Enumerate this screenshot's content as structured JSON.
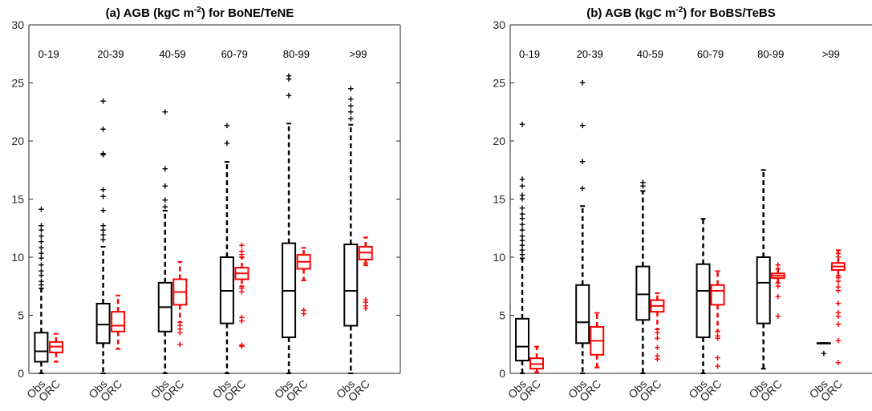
{
  "figure": {
    "panels": [
      {
        "title_main": "(a) AGB (kgC m",
        "title_sup": "-2",
        "title_rest": ") for BoNE/TeNE"
      },
      {
        "title_main": "(b) AGB (kgC m",
        "title_sup": "-2",
        "title_rest": ") for BoBS/TeBS"
      }
    ]
  },
  "chart_data": [
    {
      "type": "box",
      "title": "(a) AGB (kgC m-2) for BoNE/TeNE",
      "ylim": [
        0,
        30
      ],
      "yticks": [
        0,
        5,
        10,
        15,
        20,
        25,
        30
      ],
      "group_labels": [
        "0-19",
        "20-39",
        "40-59",
        "60-79",
        "80-99",
        ">99"
      ],
      "categories": [
        "Obs",
        "ORC"
      ],
      "colors": {
        "Obs": "#000000",
        "ORC": "#ff0000"
      },
      "groups": [
        {
          "label": "0-19",
          "Obs": {
            "whisker_low": 0,
            "q1": 1.0,
            "median": 1.9,
            "q3": 3.5,
            "whisker_high": 7.3,
            "outliers": [
              7.6,
              7.9,
              8.4,
              8.8,
              9.3,
              9.9,
              10.3,
              10.8,
              11.3,
              11.8,
              12.3,
              12.7,
              14.1
            ]
          },
          "ORC": {
            "whisker_low": 1.0,
            "q1": 1.8,
            "median": 2.3,
            "q3": 2.7,
            "whisker_high": 3.4,
            "outliers": []
          }
        },
        {
          "label": "20-39",
          "Obs": {
            "whisker_low": 0,
            "q1": 2.6,
            "median": 4.2,
            "q3": 6.0,
            "whisker_high": 10.9,
            "outliers": [
              11.5,
              11.9,
              12.3,
              12.7,
              14.0,
              15.2,
              15.8,
              18.8,
              18.9,
              21.0,
              23.4
            ]
          },
          "ORC": {
            "whisker_low": 2.1,
            "q1": 3.6,
            "median": 4.1,
            "q3": 5.3,
            "whisker_high": 6.7,
            "outliers": []
          }
        },
        {
          "label": "40-59",
          "Obs": {
            "whisker_low": 0,
            "q1": 3.6,
            "median": 5.7,
            "q3": 7.8,
            "whisker_high": 14.0,
            "outliers": [
              14.3,
              14.9,
              16.1,
              17.6,
              22.5
            ]
          },
          "ORC": {
            "whisker_low": 4.4,
            "q1": 5.9,
            "median": 7.0,
            "q3": 8.1,
            "whisker_high": 9.6,
            "outliers": [
              2.5,
              3.5,
              3.8,
              4.1
            ]
          },
          "note": ""
        },
        {
          "label": "60-79",
          "Obs": {
            "whisker_low": 0,
            "q1": 4.3,
            "median": 7.1,
            "q3": 10.0,
            "whisker_high": 18.2,
            "outliers": [
              19.8,
              21.3
            ]
          },
          "ORC": {
            "whisker_low": 7.5,
            "q1": 8.1,
            "median": 8.6,
            "q3": 9.1,
            "whisker_high": 10.0,
            "outliers": [
              2.3,
              2.4,
              4.5,
              4.8,
              7.0,
              7.3,
              10.2,
              10.5,
              11.0
            ]
          }
        },
        {
          "label": "80-99",
          "Obs": {
            "whisker_low": 0,
            "q1": 3.1,
            "median": 7.1,
            "q3": 11.2,
            "whisker_high": 21.5,
            "outliers": [
              23.9,
              25.3,
              25.6
            ]
          },
          "ORC": {
            "whisker_low": 8.0,
            "q1": 9.0,
            "median": 9.6,
            "q3": 10.2,
            "whisker_high": 10.8,
            "outliers": [
              5.1,
              5.4
            ]
          }
        },
        {
          "label": ">99",
          "Obs": {
            "whisker_low": 0,
            "q1": 4.1,
            "median": 7.1,
            "q3": 11.1,
            "whisker_high": 21.4,
            "outliers": [
              21.9,
              22.5,
              23.0,
              23.6,
              24.5
            ]
          },
          "ORC": {
            "whisker_low": 9.3,
            "q1": 9.8,
            "median": 10.4,
            "q3": 10.9,
            "whisker_high": 11.7,
            "outliers": [
              5.6,
              5.8,
              6.1,
              6.3,
              9.5
            ]
          }
        }
      ]
    },
    {
      "type": "box",
      "title": "(b) AGB (kgC m-2) for BoBS/TeBS",
      "ylim": [
        0,
        30
      ],
      "yticks": [
        0,
        5,
        10,
        15,
        20,
        25,
        30
      ],
      "group_labels": [
        "0-19",
        "20-39",
        "40-59",
        "60-79",
        "80-99",
        ">99"
      ],
      "categories": [
        "Obs",
        "ORC"
      ],
      "colors": {
        "Obs": "#000000",
        "ORC": "#ff0000"
      },
      "groups": [
        {
          "label": "0-19",
          "Obs": {
            "whisker_low": 0,
            "q1": 1.1,
            "median": 2.3,
            "q3": 4.7,
            "whisker_high": 9.9,
            "outliers": [
              10.2,
              10.6,
              11.0,
              11.4,
              11.8,
              12.3,
              12.8,
              13.3,
              13.7,
              14.2,
              15.0,
              15.3,
              16.1,
              16.7,
              21.4
            ]
          },
          "ORC": {
            "whisker_low": 0.1,
            "q1": 0.4,
            "median": 0.8,
            "q3": 1.3,
            "whisker_high": 2.3,
            "outliers": []
          }
        },
        {
          "label": "20-39",
          "Obs": {
            "whisker_low": 0,
            "q1": 2.6,
            "median": 4.4,
            "q3": 7.6,
            "whisker_high": 14.4,
            "outliers": [
              15.9,
              18.2,
              21.3,
              25.0
            ]
          },
          "ORC": {
            "whisker_low": 0.5,
            "q1": 1.6,
            "median": 2.8,
            "q3": 4.0,
            "whisker_high": 5.2,
            "outliers": []
          }
        },
        {
          "label": "40-59",
          "Obs": {
            "whisker_low": 0,
            "q1": 4.6,
            "median": 6.8,
            "q3": 9.2,
            "whisker_high": 15.7,
            "outliers": [
              16.1,
              16.4
            ]
          },
          "ORC": {
            "whisker_low": 3.8,
            "q1": 5.3,
            "median": 5.8,
            "q3": 6.3,
            "whisker_high": 6.9,
            "outliers": [
              1.2,
              1.5,
              2.2,
              3.0,
              3.5
            ]
          }
        },
        {
          "label": "60-79",
          "Obs": {
            "whisker_low": 0,
            "q1": 3.1,
            "median": 7.1,
            "q3": 9.4,
            "whisker_high": 13.3,
            "outliers": []
          },
          "ORC": {
            "whisker_low": 3.6,
            "q1": 5.9,
            "median": 7.1,
            "q3": 7.6,
            "whisker_high": 8.8,
            "outliers": [
              0.6,
              1.3,
              3.0,
              3.2
            ]
          }
        },
        {
          "label": "80-99",
          "Obs": {
            "whisker_low": 0.4,
            "q1": 4.3,
            "median": 7.8,
            "q3": 10.0,
            "whisker_high": 17.5,
            "outliers": []
          },
          "ORC": {
            "whisker_low": 7.8,
            "q1": 8.2,
            "median": 8.4,
            "q3": 8.6,
            "whisker_high": 9.0,
            "outliers": [
              4.9,
              6.6,
              7.5,
              9.3
            ]
          }
        },
        {
          "label": ">99",
          "Obs": {
            "whisker_low": 2.6,
            "q1": 2.6,
            "median": 2.6,
            "q3": 2.6,
            "whisker_high": 2.6,
            "outliers": [
              1.7
            ]
          },
          "ORC": {
            "whisker_low": 8.4,
            "q1": 8.9,
            "median": 9.2,
            "q3": 9.5,
            "whisker_high": 10.6,
            "outliers": [
              0.9,
              2.8,
              4.2,
              4.9,
              5.2,
              6.0,
              7.1,
              7.4,
              7.9,
              8.2,
              10.0,
              10.3
            ]
          }
        }
      ]
    }
  ]
}
